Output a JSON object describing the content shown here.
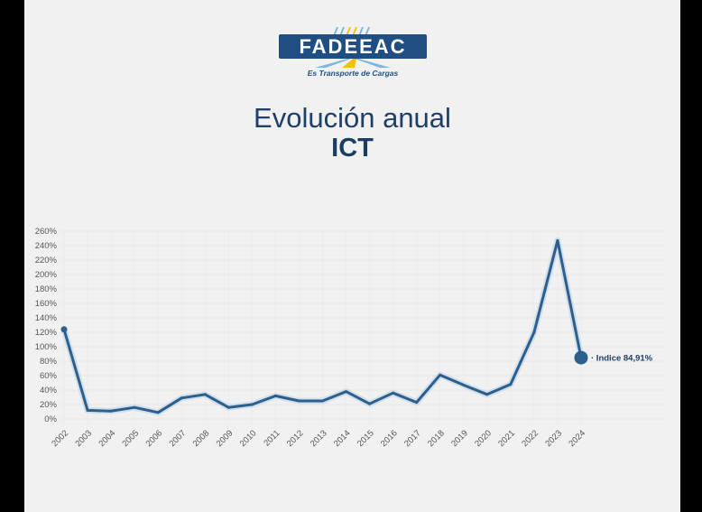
{
  "logo": {
    "name": "FADEEAC",
    "tagline": "Es Transporte de Cargas"
  },
  "title": {
    "line1": "Evolución anual",
    "line2": "ICT"
  },
  "colors": {
    "background": "#f1f1f1",
    "line": "#2b5f8e",
    "title": "#1f3f66",
    "brand": "#1f4f82"
  },
  "chart_data": {
    "type": "line",
    "categories": [
      "2002",
      "2003",
      "2004",
      "2005",
      "2006",
      "2007",
      "2008",
      "2009",
      "2010",
      "2011",
      "2012",
      "2013",
      "2014",
      "2015",
      "2016",
      "2017",
      "2018",
      "2019",
      "2020",
      "2021",
      "2022",
      "2023",
      "2024"
    ],
    "series": [
      {
        "values": [
          124,
          12,
          11,
          16,
          9,
          29,
          34,
          16,
          20,
          32,
          25,
          25,
          38,
          21,
          36,
          23,
          61,
          47,
          34,
          48,
          120,
          247,
          84.91
        ]
      }
    ],
    "ylim": [
      0,
      260
    ],
    "yticks": [
      "0%",
      "20%",
      "40%",
      "60%",
      "80%",
      "100%",
      "120%",
      "140%",
      "160%",
      "180%",
      "200%",
      "220%",
      "240%",
      "260%"
    ],
    "grid": true,
    "annotation": {
      "category": "2024",
      "text": "· Indice 84,91%"
    }
  }
}
